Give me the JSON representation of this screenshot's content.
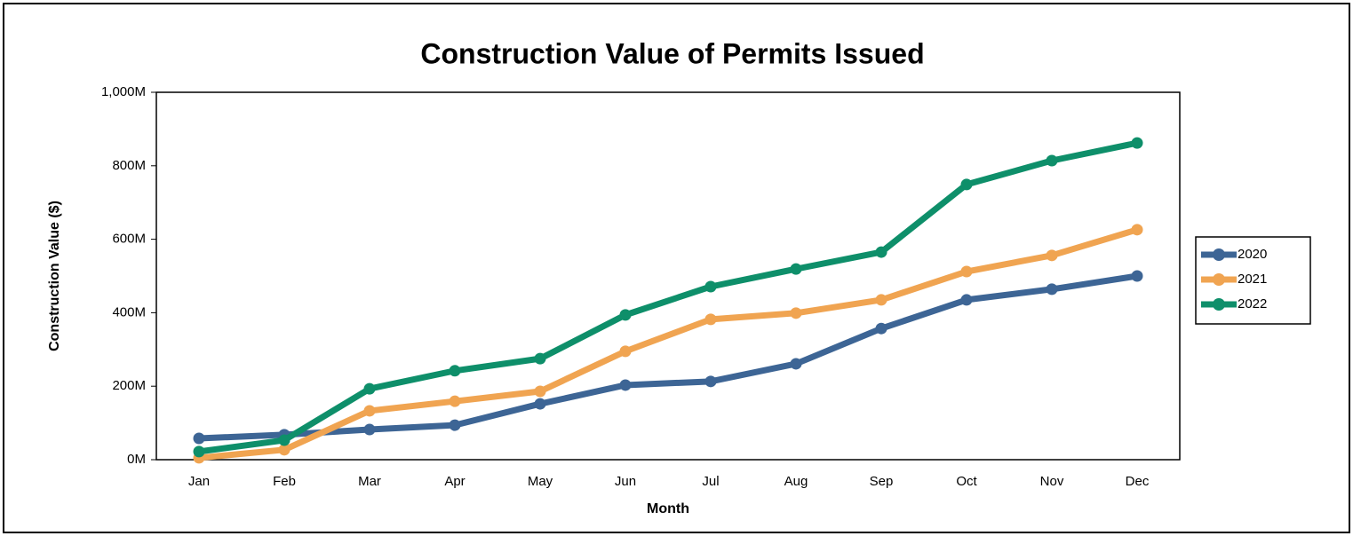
{
  "chart_data": {
    "type": "line",
    "title": "Construction Value of Permits Issued",
    "x_label": "Month",
    "y_label": "Construction Value ($)",
    "categories": [
      "Jan",
      "Feb",
      "Mar",
      "Apr",
      "May",
      "Jun",
      "Jul",
      "Aug",
      "Sep",
      "Oct",
      "Nov",
      "Dec"
    ],
    "series": [
      {
        "name": "2020",
        "color": "#3d6595",
        "values": [
          58,
          68,
          82,
          94,
          152,
          203,
          213,
          261,
          357,
          435,
          464,
          500
        ]
      },
      {
        "name": "2021",
        "color": "#f0a451",
        "values": [
          5,
          27,
          133,
          159,
          186,
          295,
          382,
          399,
          435,
          512,
          556,
          626
        ]
      },
      {
        "name": "2022",
        "color": "#0e8f6a",
        "values": [
          22,
          53,
          193,
          242,
          275,
          394,
          471,
          519,
          565,
          749,
          814,
          862
        ]
      }
    ],
    "ylim": [
      0,
      1000
    ],
    "yticks": [
      {
        "value": 0,
        "label": "0M"
      },
      {
        "value": 200,
        "label": "200M"
      },
      {
        "value": 400,
        "label": "400M"
      },
      {
        "value": 600,
        "label": "600M"
      },
      {
        "value": 800,
        "label": "800M"
      },
      {
        "value": 1000,
        "label": "1,000M"
      }
    ],
    "legend": "right"
  }
}
